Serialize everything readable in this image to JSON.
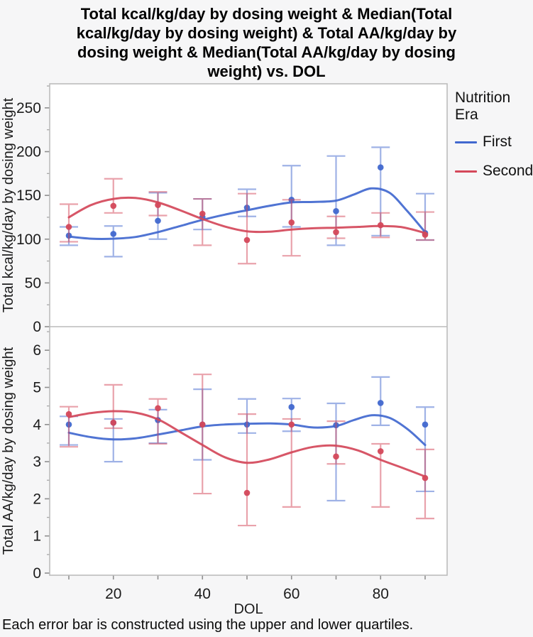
{
  "page": {
    "title_lines": [
      "Total kcal/kg/day by dosing weight & Median(Total",
      "kcal/kg/day by dosing weight) & Total AA/kg/day by",
      "dosing weight & Median(Total AA/kg/day by dosing",
      "weight) vs. DOL"
    ],
    "footnote": "Each error bar is constructed using the upper and lower quartiles."
  },
  "legend": {
    "title": "Nutrition Era",
    "items": [
      {
        "label": "First",
        "color": "#4168cf"
      },
      {
        "label": "Second",
        "color": "#d4485a"
      }
    ]
  },
  "chart_data": [
    {
      "type": "line",
      "panel": "top",
      "ylabel": "Total kcal/kg/day by dosing weight",
      "xlabel": "DOL",
      "x": [
        10,
        20,
        30,
        40,
        50,
        60,
        70,
        80,
        90
      ],
      "x_tick_labels": [
        20,
        40,
        60,
        80
      ],
      "ylim": [
        0,
        277
      ],
      "yticks": [
        0,
        50,
        100,
        150,
        200,
        250
      ],
      "error_bar_meaning": "upper and lower quartiles",
      "series": [
        {
          "name": "First",
          "color": "#4168cf",
          "median": [
            104,
            106,
            121,
            125,
            136,
            145,
            132,
            182,
            107
          ],
          "q1": [
            93,
            80,
            100,
            111,
            126,
            114,
            93,
            104,
            99
          ],
          "q3": [
            114,
            115,
            153,
            146,
            157,
            184,
            195,
            205,
            152
          ],
          "spline": {
            "x": [
              10,
              15,
              20,
              25,
              30,
              35,
              40,
              45,
              50,
              55,
              60,
              65,
              70,
              74,
              78,
              82,
              86,
              90
            ],
            "y": [
              103,
              100.5,
              100.5,
              102.5,
              108,
              115,
              122,
              128,
              133,
              138,
              142,
              142.5,
              144,
              151,
              158,
              153,
              132,
              108
            ]
          }
        },
        {
          "name": "Second",
          "color": "#d4485a",
          "median": [
            114,
            138,
            139,
            129,
            99,
            119,
            108,
            116,
            105
          ],
          "q1": [
            97,
            130,
            127,
            93,
            72,
            81,
            101,
            102,
            99
          ],
          "q3": [
            140,
            169,
            154,
            146,
            152,
            145,
            126,
            130,
            131
          ],
          "spline": {
            "x": [
              10,
              15,
              20,
              25,
              30,
              35,
              40,
              45,
              50,
              55,
              60,
              65,
              70,
              75,
              80,
              85,
              90
            ],
            "y": [
              125,
              139,
              146,
              147,
              142,
              133,
              123,
              114.5,
              109,
              108.5,
              111,
              112.5,
              113,
              114,
              115,
              113.5,
              107
            ]
          }
        }
      ]
    },
    {
      "type": "line",
      "panel": "bottom",
      "ylabel": "Total AA/kg/day by dosing weight",
      "xlabel": "DOL",
      "x": [
        10,
        20,
        30,
        40,
        50,
        60,
        70,
        80,
        90
      ],
      "x_tick_labels": [
        20,
        40,
        60,
        80
      ],
      "ylim": [
        0,
        6.6
      ],
      "yticks": [
        0,
        1,
        2,
        3,
        4,
        5,
        6
      ],
      "error_bar_meaning": "upper and lower quartiles",
      "series": [
        {
          "name": "First",
          "color": "#4168cf",
          "median": [
            4.0,
            4.05,
            4.12,
            4.0,
            4.0,
            4.47,
            3.98,
            4.58,
            4.0
          ],
          "q1": [
            3.45,
            3.0,
            3.5,
            3.05,
            3.77,
            3.82,
            1.95,
            3.98,
            2.2
          ],
          "q3": [
            4.22,
            4.15,
            4.4,
            4.95,
            4.69,
            4.7,
            4.57,
            5.28,
            4.47
          ],
          "spline": {
            "x": [
              10,
              15,
              20,
              25,
              30,
              35,
              40,
              45,
              50,
              55,
              60,
              65,
              70,
              74,
              78,
              82,
              86,
              90
            ],
            "y": [
              3.78,
              3.66,
              3.6,
              3.63,
              3.73,
              3.84,
              3.95,
              4.0,
              4.02,
              4.03,
              4.0,
              3.92,
              3.96,
              4.12,
              4.25,
              4.18,
              3.88,
              3.45
            ]
          }
        },
        {
          "name": "Second",
          "color": "#d4485a",
          "median": [
            4.28,
            4.05,
            4.44,
            4.0,
            2.16,
            4.0,
            3.14,
            3.28,
            2.56
          ],
          "q1": [
            3.4,
            3.9,
            3.48,
            2.14,
            1.28,
            1.78,
            2.94,
            1.78,
            1.47
          ],
          "q3": [
            4.48,
            5.07,
            4.69,
            5.35,
            4.28,
            4.15,
            4.09,
            3.48,
            3.33
          ],
          "spline": {
            "x": [
              10,
              15,
              20,
              25,
              30,
              35,
              40,
              45,
              50,
              55,
              60,
              65,
              70,
              75,
              80,
              85,
              90
            ],
            "y": [
              4.2,
              4.31,
              4.36,
              4.32,
              4.14,
              3.8,
              3.45,
              3.12,
              2.97,
              3.06,
              3.25,
              3.4,
              3.43,
              3.3,
              3.05,
              2.83,
              2.6
            ]
          }
        }
      ]
    }
  ]
}
